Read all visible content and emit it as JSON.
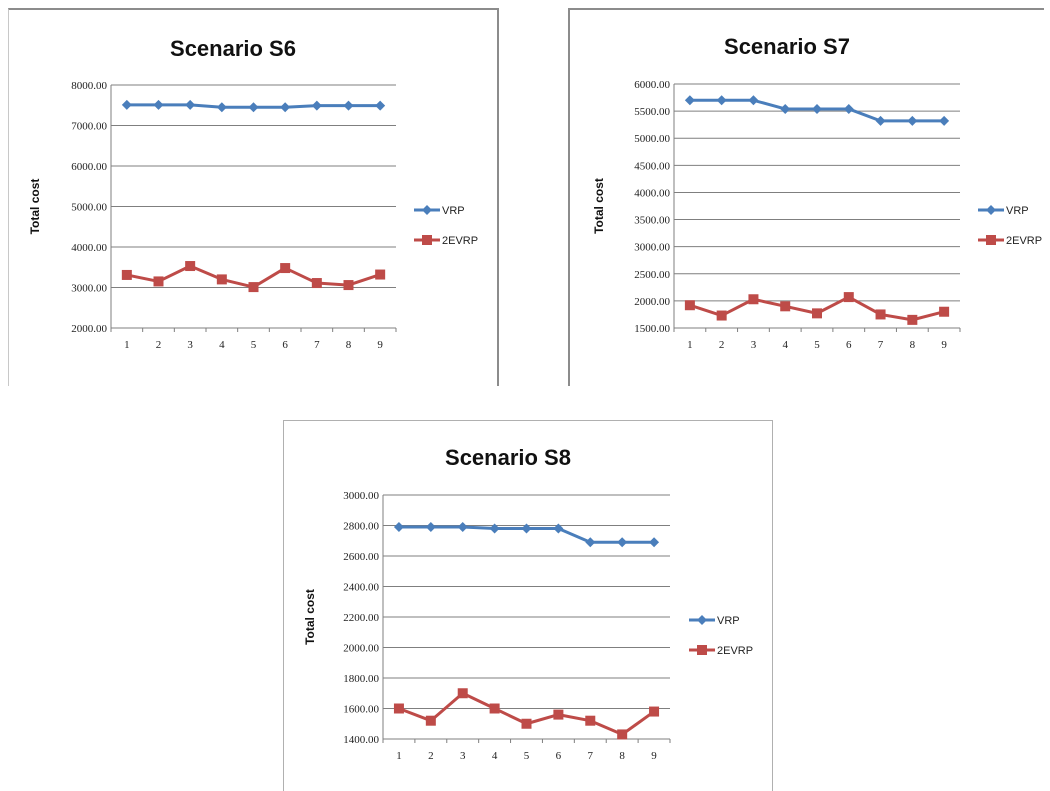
{
  "chart_data": [
    {
      "type": "line",
      "title": "Scenario S6",
      "xlabel": "",
      "ylabel": "Total cost",
      "x": [
        1,
        2,
        3,
        4,
        5,
        6,
        7,
        8,
        9
      ],
      "ylim": [
        2000,
        8000
      ],
      "yticks": [
        2000,
        3000,
        4000,
        5000,
        6000,
        7000,
        8000
      ],
      "ytick_labels": [
        "2000.00",
        "3000.00",
        "4000.00",
        "5000.00",
        "6000.00",
        "7000.00",
        "8000.00"
      ],
      "grid": true,
      "legend": "right",
      "series": [
        {
          "name": "VRP",
          "color": "#4a7ebb",
          "marker": "diamond",
          "values": [
            7510,
            7510,
            7510,
            7450,
            7450,
            7450,
            7490,
            7490,
            7490
          ]
        },
        {
          "name": "2EVRP",
          "color": "#be4b48",
          "marker": "square",
          "values": [
            3310,
            3150,
            3530,
            3200,
            3010,
            3480,
            3110,
            3060,
            3320
          ]
        }
      ]
    },
    {
      "type": "line",
      "title": "Scenario S7",
      "xlabel": "",
      "ylabel": "Total cost",
      "x": [
        1,
        2,
        3,
        4,
        5,
        6,
        7,
        8,
        9
      ],
      "ylim": [
        1500,
        6000
      ],
      "yticks": [
        1500,
        2000,
        2500,
        3000,
        3500,
        4000,
        4500,
        5000,
        5500,
        6000
      ],
      "ytick_labels": [
        "1500.00",
        "2000.00",
        "2500.00",
        "3000.00",
        "3500.00",
        "4000.00",
        "4500.00",
        "5000.00",
        "5500.00",
        "6000.00"
      ],
      "grid": true,
      "legend": "right",
      "series": [
        {
          "name": "VRP",
          "color": "#4a7ebb",
          "marker": "diamond",
          "values": [
            5700,
            5700,
            5700,
            5540,
            5540,
            5540,
            5320,
            5320,
            5320
          ]
        },
        {
          "name": "2EVRP",
          "color": "#be4b48",
          "marker": "square",
          "values": [
            1920,
            1730,
            2030,
            1900,
            1770,
            2070,
            1750,
            1650,
            1800
          ]
        }
      ]
    },
    {
      "type": "line",
      "title": "Scenario S8",
      "xlabel": "",
      "ylabel": "Total cost",
      "x": [
        1,
        2,
        3,
        4,
        5,
        6,
        7,
        8,
        9
      ],
      "ylim": [
        1400,
        3000
      ],
      "yticks": [
        1400,
        1600,
        1800,
        2000,
        2200,
        2400,
        2600,
        2800,
        3000
      ],
      "ytick_labels": [
        "1400.00",
        "1600.00",
        "1800.00",
        "2000.00",
        "2200.00",
        "2400.00",
        "2600.00",
        "2800.00",
        "3000.00"
      ],
      "grid": true,
      "legend": "right",
      "series": [
        {
          "name": "VRP",
          "color": "#4a7ebb",
          "marker": "diamond",
          "values": [
            2790,
            2790,
            2790,
            2780,
            2780,
            2780,
            2690,
            2690,
            2690
          ]
        },
        {
          "name": "2EVRP",
          "color": "#be4b48",
          "marker": "square",
          "values": [
            1600,
            1520,
            1700,
            1600,
            1500,
            1560,
            1520,
            1430,
            1580
          ]
        }
      ]
    }
  ]
}
